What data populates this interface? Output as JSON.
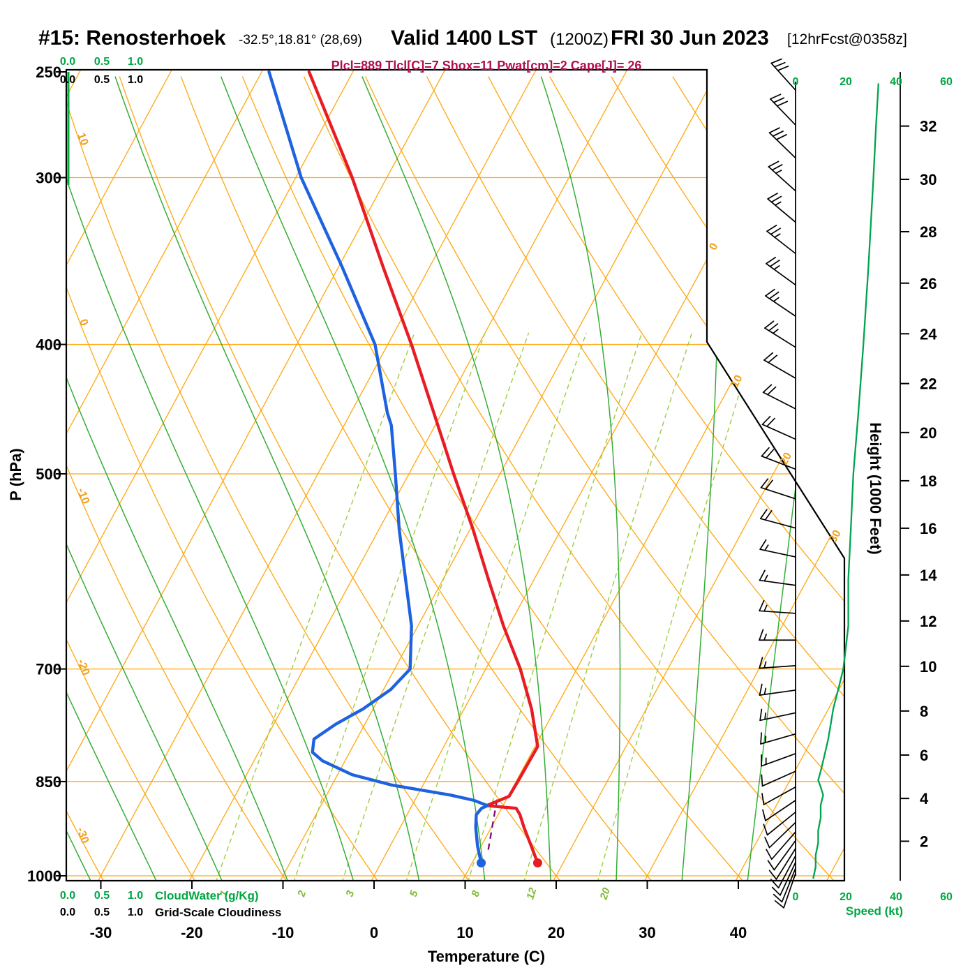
{
  "header": {
    "station": "#15: Renosterhoek",
    "coords": "-32.5°,18.81° (28,69)",
    "valid_label": "Valid 1400 LST",
    "valid_zulu": "(1200Z)",
    "valid_date": "FRI 30 Jun 2023",
    "forecast_tag": "[12hrFcst@0358z]",
    "indices": "Plcl=889 Tlcl[C]=7 Shox=11 Pwat[cm]=2 Cape[J]= 26"
  },
  "axes": {
    "pressure_label": "P (hPa)",
    "pressure_ticks": [
      250,
      300,
      400,
      500,
      700,
      850,
      1000
    ],
    "temperature_label": "Temperature (C)",
    "temperature_ticks": [
      -30,
      -20,
      -10,
      0,
      10,
      20,
      30,
      40
    ],
    "height_label": "Height (1000 Feet)",
    "height_ticks": [
      2,
      4,
      6,
      8,
      10,
      12,
      14,
      16,
      18,
      20,
      22,
      24,
      26,
      28,
      30,
      32
    ],
    "speed_label": "Speed (kt)",
    "speed_ticks": [
      0,
      20,
      40,
      60
    ],
    "cloudwater_label": "CloudWater (g/Kg)",
    "cloudiness_label": "Grid-Scale Cloudiness",
    "cloudwater_ticks": [
      "0.0",
      "0.5",
      "1.0"
    ],
    "isotherm_labels": [
      0,
      10,
      20,
      30
    ],
    "dry_adiabat_labels": [
      10,
      0,
      -10,
      -20,
      -30
    ],
    "mixing_ratio_labels": [
      1,
      2,
      3,
      5,
      8,
      12,
      20
    ]
  },
  "chart_data": {
    "type": "skewt-log-p-sounding",
    "pressure_range_hpa": [
      250,
      1000
    ],
    "temperature_axis_range_c": [
      -30,
      40
    ],
    "indices": {
      "plcl_hpa": 889,
      "tlcl_c": 7,
      "showalter": 11,
      "pwat_cm": 2,
      "cape_j": 26
    },
    "surface": {
      "pressure_hpa": 978,
      "temp_c": 17.2,
      "dewpoint_c": 11.0
    },
    "temperature_profile": [
      [
        978,
        17.2
      ],
      [
        950,
        15.5
      ],
      [
        920,
        13.6
      ],
      [
        900,
        12.4
      ],
      [
        890,
        11.6
      ],
      [
        886,
        8.2
      ],
      [
        872,
        10.1
      ],
      [
        850,
        10.2
      ],
      [
        800,
        10.3
      ],
      [
        750,
        7.4
      ],
      [
        700,
        3.8
      ],
      [
        650,
        -0.6
      ],
      [
        600,
        -5.0
      ],
      [
        550,
        -9.7
      ],
      [
        500,
        -15.1
      ],
      [
        450,
        -20.9
      ],
      [
        400,
        -27.4
      ],
      [
        350,
        -35.1
      ],
      [
        300,
        -43.8
      ],
      [
        250,
        -54.8
      ]
    ],
    "dewpoint_profile": [
      [
        978,
        11.0
      ],
      [
        950,
        9.6
      ],
      [
        920,
        8.3
      ],
      [
        900,
        7.6
      ],
      [
        890,
        7.8
      ],
      [
        886,
        8.3
      ],
      [
        878,
        6.5
      ],
      [
        870,
        3.6
      ],
      [
        855,
        -3.5
      ],
      [
        840,
        -8.4
      ],
      [
        820,
        -12.5
      ],
      [
        808,
        -14.1
      ],
      [
        790,
        -14.7
      ],
      [
        770,
        -13.2
      ],
      [
        750,
        -11.1
      ],
      [
        725,
        -9.2
      ],
      [
        700,
        -8.3
      ],
      [
        650,
        -10.7
      ],
      [
        600,
        -14.1
      ],
      [
        550,
        -17.8
      ],
      [
        500,
        -21.5
      ],
      [
        460,
        -24.8
      ],
      [
        450,
        -26.0
      ],
      [
        400,
        -31.4
      ],
      [
        350,
        -39.6
      ],
      [
        300,
        -49.4
      ],
      [
        250,
        -59.2
      ]
    ],
    "parcel_path": [
      [
        956,
        11.0
      ],
      [
        920,
        10.1
      ],
      [
        889,
        9.3
      ],
      [
        873,
        8.9
      ]
    ],
    "wind_barbs": [
      [
        258,
        318,
        30
      ],
      [
        274,
        316,
        28
      ],
      [
        290,
        314,
        28
      ],
      [
        307,
        312,
        27
      ],
      [
        324,
        310,
        26
      ],
      [
        342,
        308,
        26
      ],
      [
        361,
        306,
        25
      ],
      [
        381,
        304,
        24
      ],
      [
        402,
        302,
        23
      ],
      [
        424,
        300,
        22
      ],
      [
        447,
        297,
        21
      ],
      [
        471,
        294,
        20
      ],
      [
        496,
        291,
        19
      ],
      [
        522,
        288,
        18
      ],
      [
        549,
        285,
        18
      ],
      [
        577,
        282,
        17
      ],
      [
        606,
        278,
        16
      ],
      [
        636,
        274,
        16
      ],
      [
        666,
        270,
        15
      ],
      [
        696,
        266,
        15
      ],
      [
        726,
        262,
        14
      ],
      [
        755,
        258,
        14
      ],
      [
        783,
        254,
        13
      ],
      [
        810,
        250,
        13
      ],
      [
        835,
        246,
        12
      ],
      [
        858,
        241,
        12
      ],
      [
        878,
        236,
        11
      ],
      [
        896,
        231,
        11
      ],
      [
        912,
        226,
        10
      ],
      [
        927,
        221,
        10
      ],
      [
        941,
        216,
        10
      ],
      [
        954,
        212,
        9
      ],
      [
        966,
        208,
        9
      ],
      [
        977,
        205,
        8
      ],
      [
        987,
        202,
        8
      ],
      [
        996,
        199,
        8
      ]
    ],
    "wind_speed_profile": [
      [
        1005,
        7
      ],
      [
        985,
        8
      ],
      [
        965,
        8
      ],
      [
        945,
        9
      ],
      [
        925,
        9
      ],
      [
        905,
        10
      ],
      [
        885,
        10
      ],
      [
        870,
        11
      ],
      [
        858,
        10
      ],
      [
        848,
        9
      ],
      [
        835,
        10
      ],
      [
        820,
        11
      ],
      [
        805,
        12
      ],
      [
        790,
        13
      ],
      [
        770,
        14
      ],
      [
        750,
        15
      ],
      [
        725,
        17
      ],
      [
        700,
        19
      ],
      [
        675,
        20
      ],
      [
        650,
        21
      ],
      [
        600,
        21
      ],
      [
        550,
        22
      ],
      [
        500,
        23
      ],
      [
        450,
        25
      ],
      [
        400,
        27
      ],
      [
        350,
        29
      ],
      [
        300,
        31
      ],
      [
        275,
        32
      ],
      [
        255,
        33
      ]
    ],
    "cloudwater_profile_gkg": 0
  },
  "colors": {
    "isotherm_dry_adiabat": "#ffa70f",
    "moist_adiabat": "#35ad35",
    "mixing_ratio": "#9ccd3e",
    "temperature_curve": "#e81c24",
    "dewpoint_curve": "#1e62e0",
    "parcel_path": "#7b0d7b",
    "speed_curve": "#00a44f",
    "indices_text": "#b01050",
    "green_text": "#00a643"
  }
}
